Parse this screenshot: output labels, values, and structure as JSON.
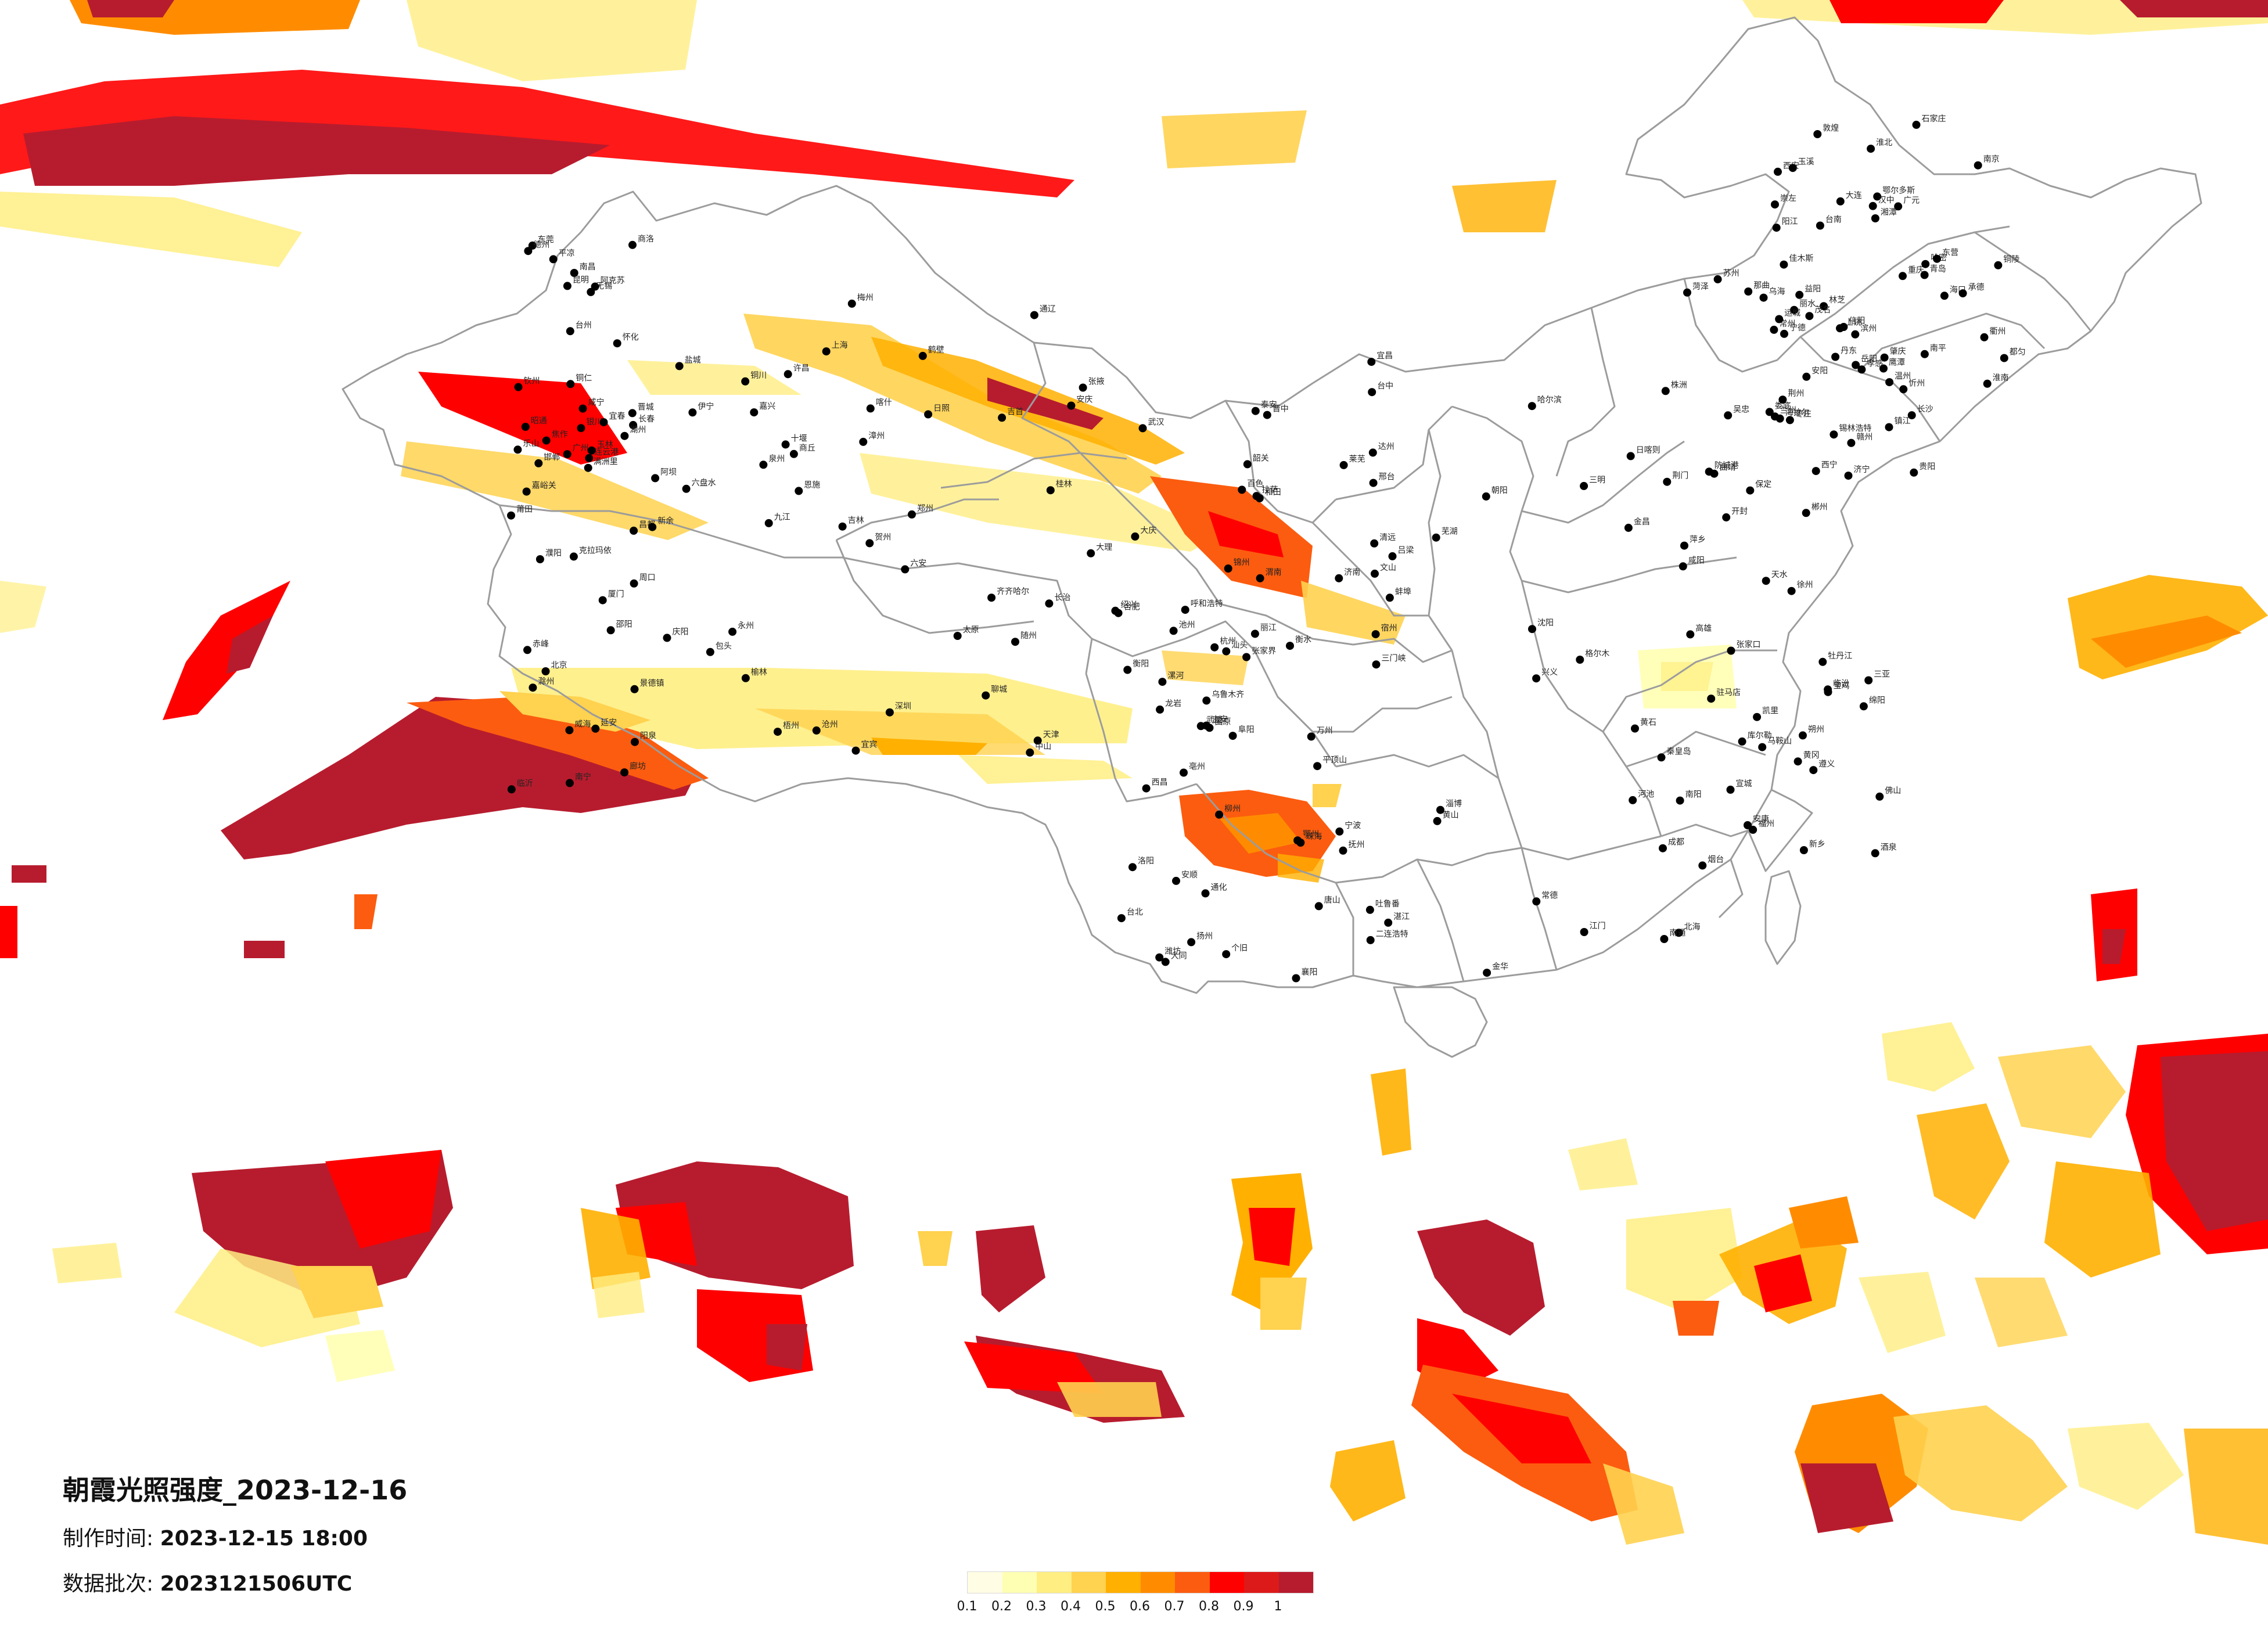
{
  "title": "朝霞光照强度_2023-12-16",
  "info": {
    "made_label": "制作时间:",
    "made_value": "2023-12-15 18:00",
    "batch_label": "数据批次:",
    "batch_value": "2023121506UTC"
  },
  "legend": {
    "colors": [
      "#fffde4",
      "#ffffb3",
      "#ffee82",
      "#ffd24f",
      "#ffb000",
      "#ff8c00",
      "#fc5c0f",
      "#ff0000",
      "#dd1a1a",
      "#b71c2e"
    ],
    "labels": [
      "0.1",
      "0.2",
      "0.3",
      "0.4",
      "0.5",
      "0.6",
      "0.7",
      "0.8",
      "0.9",
      "1"
    ]
  },
  "map": {
    "background": "#ffffff",
    "border_color": "#9c9c9c",
    "city_dot_color": "#000000",
    "city_labels": [
      "克拉玛依",
      "伊宁",
      "乌鲁木齐",
      "吐鲁番",
      "哈密",
      "库尔勒",
      "阿克苏",
      "喀什",
      "和田",
      "格尔木",
      "敦煌",
      "酒泉",
      "嘉峪关",
      "张掖",
      "武威",
      "金昌",
      "西宁",
      "兰州",
      "银川",
      "包头",
      "呼和浩特",
      "二连浩特",
      "锡林浩特",
      "海拉尔",
      "满洲里",
      "齐齐哈尔",
      "大庆",
      "哈尔滨",
      "佳木斯",
      "牡丹江",
      "长春",
      "吉林",
      "通化",
      "沈阳",
      "大连",
      "丹东",
      "北京",
      "天津",
      "唐山",
      "秦皇岛",
      "石家庄",
      "保定",
      "邯郸",
      "太原",
      "大同",
      "济南",
      "青岛",
      "烟台",
      "威海",
      "郑州",
      "洛阳",
      "开封",
      "西安",
      "宝鸡",
      "延安",
      "榆林",
      "武汉",
      "宜昌",
      "长沙",
      "岳阳",
      "南昌",
      "九江",
      "合肥",
      "芜湖",
      "南京",
      "苏州",
      "无锡",
      "上海",
      "杭州",
      "宁波",
      "温州",
      "福州",
      "厦门",
      "泉州",
      "台北",
      "台中",
      "台南",
      "高雄",
      "广州",
      "深圳",
      "汕头",
      "湛江",
      "海口",
      "三亚",
      "南宁",
      "桂林",
      "柳州",
      "北海",
      "贵阳",
      "遵义",
      "昆明",
      "大理",
      "丽江",
      "成都",
      "重庆",
      "绵阳",
      "乐山",
      "宜宾",
      "拉萨",
      "日喀则",
      "林芝",
      "那曲",
      "昌都",
      "阿坝",
      "西昌",
      "黄山",
      "赣州",
      "郴州",
      "怀化",
      "恩施",
      "万州",
      "达州",
      "广元",
      "天水",
      "平凉",
      "庆阳",
      "固原",
      "吴忠",
      "鄂尔多斯",
      "乌海",
      "赤峰",
      "通辽",
      "锦州",
      "朝阳",
      "承德",
      "张家口",
      "廊坊",
      "沧州",
      "衡水",
      "邢台",
      "安阳",
      "新乡",
      "焦作",
      "许昌",
      "平顶山",
      "南阳",
      "信阳",
      "驻马店",
      "周口",
      "商丘",
      "阜阳",
      "蚌埠",
      "淮南",
      "徐州",
      "连云港",
      "盐城",
      "扬州",
      "南通",
      "镇江",
      "常州",
      "湖州",
      "嘉兴",
      "绍兴",
      "金华",
      "衢州",
      "丽水",
      "台州",
      "漳州",
      "龙岩",
      "三明",
      "南平",
      "宁德",
      "莆田",
      "梅州",
      "韶关",
      "清远",
      "肇庆",
      "佛山",
      "东莞",
      "中山",
      "珠海",
      "江门",
      "阳江",
      "茂名",
      "玉林",
      "梧州",
      "百色",
      "河池",
      "崇左",
      "防城港",
      "钦州",
      "贺州",
      "个旧",
      "文山",
      "玉溪",
      "曲靖",
      "昭通",
      "六盘水",
      "安顺",
      "兴义",
      "都匀",
      "凯里",
      "铜仁",
      "吉首",
      "张家界",
      "常德",
      "益阳",
      "娄底",
      "邵阳",
      "永州",
      "衡阳",
      "株洲",
      "湘潭",
      "萍乡",
      "宜春",
      "新余",
      "吉安",
      "抚州",
      "鹰潭",
      "上饶",
      "景德镇",
      "安庆",
      "池州",
      "宣城",
      "铜陵",
      "马鞍山",
      "滁州",
      "六安",
      "亳州",
      "宿州",
      "淮北",
      "枣庄",
      "临沂",
      "日照",
      "潍坊",
      "淄博",
      "东营",
      "滨州",
      "德州",
      "聊城",
      "泰安",
      "莱芜",
      "济宁",
      "菏泽",
      "濮阳",
      "鹤壁",
      "漯河",
      "三门峡",
      "运城",
      "临汾",
      "晋城",
      "长治",
      "晋中",
      "吕梁",
      "忻州",
      "朔州",
      "阳泉",
      "铜川",
      "渭南",
      "咸阳",
      "汉中",
      "安康",
      "商洛",
      "十堰",
      "襄阳",
      "荆门",
      "孝感",
      "黄冈",
      "咸宁",
      "随州",
      "鄂州",
      "黄石",
      "荆州"
    ]
  }
}
